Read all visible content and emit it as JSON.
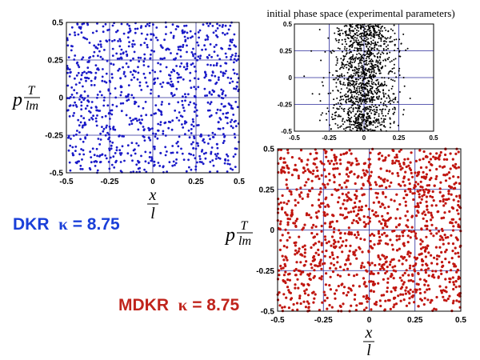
{
  "chart_data": [
    {
      "id": "dkr",
      "type": "scatter",
      "title": "",
      "xlabel_num": "x",
      "xlabel_den": "l",
      "ylabel_base": "p",
      "ylabel_num": "T",
      "ylabel_den": "lm",
      "xlim": [
        -0.5,
        0.5
      ],
      "ylim": [
        -0.5,
        0.5
      ],
      "xticks": [
        -0.5,
        -0.25,
        0,
        0.25,
        0.5
      ],
      "yticks": [
        -0.5,
        -0.25,
        0,
        0.25,
        0.5
      ],
      "xtick_labels": [
        "-0.5",
        "-0.25",
        "0",
        "0.25",
        "0.5"
      ],
      "ytick_labels": [
        "-0.5",
        "-0.25",
        "0",
        "0.25",
        "0.5"
      ],
      "grid": true,
      "distribution": "uniform",
      "color": "#1a1ac8",
      "point_count": 1000
    },
    {
      "id": "initial",
      "type": "scatter",
      "title": "initial phase space (experimental parameters)",
      "xlim": [
        -0.5,
        0.5
      ],
      "ylim": [
        -0.5,
        0.5
      ],
      "xticks": [
        -0.5,
        -0.25,
        0,
        0.25,
        0.5
      ],
      "yticks": [
        -0.5,
        -0.25,
        0,
        0.25,
        0.5
      ],
      "xtick_labels": [
        "-0.5",
        "-0.25",
        "0",
        "0.25",
        "0.5"
      ],
      "ytick_labels": [
        "-0.5",
        "-0.25",
        "0",
        "0.25",
        "0.5"
      ],
      "grid": true,
      "distribution": "gaussian in x (sigma ≈ 0.11), uniform in p",
      "x_sigma": 0.11,
      "color": "#000000",
      "point_count": 1400
    },
    {
      "id": "mdkr",
      "type": "scatter",
      "title": "",
      "xlabel_num": "x",
      "xlabel_den": "l",
      "ylabel_base": "p",
      "ylabel_num": "T",
      "ylabel_den": "lm",
      "xlim": [
        -0.5,
        0.5
      ],
      "ylim": [
        -0.5,
        0.5
      ],
      "xticks": [
        -0.5,
        -0.25,
        0,
        0.25,
        0.5
      ],
      "yticks": [
        -0.5,
        -0.25,
        0,
        0.25,
        0.5
      ],
      "xtick_labels": [
        "-0.5",
        "-0.25",
        "0",
        "0.25",
        "0.5"
      ],
      "ytick_labels": [
        "-0.5",
        "-0.25",
        "0",
        "0.25",
        "0.5"
      ],
      "grid": true,
      "distribution": "uniform",
      "color": "#c0150f",
      "point_count": 1300
    }
  ],
  "captions": {
    "dkr": {
      "label": "DKR",
      "kappa_symbol": "κ",
      "value": "= 8.75",
      "color": "#1a3fd9"
    },
    "mdkr": {
      "label": "MDKR",
      "kappa_symbol": "κ",
      "value": "= 8.75",
      "color": "#c0241c"
    }
  }
}
